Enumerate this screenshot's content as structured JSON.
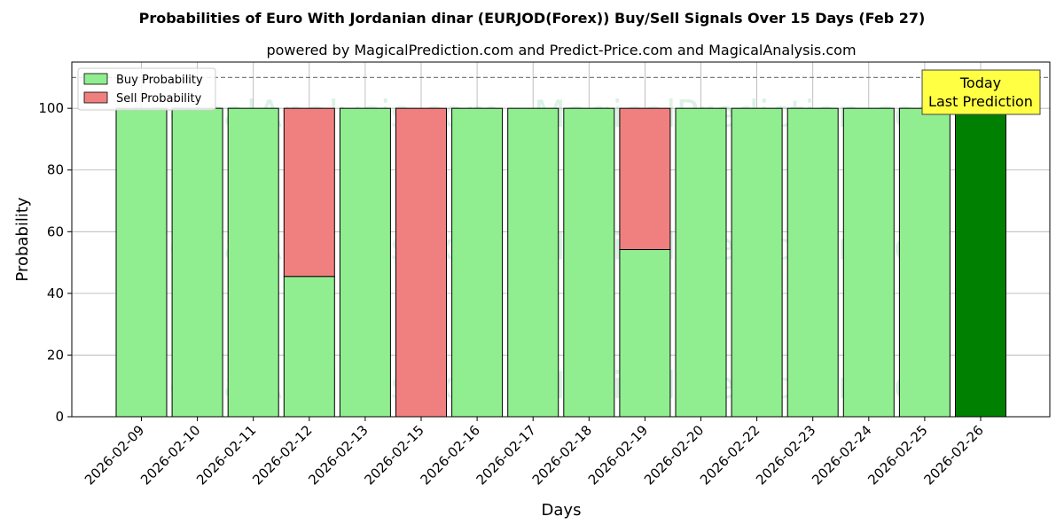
{
  "chart_data": {
    "type": "bar",
    "stacked": true,
    "title": "Probabilities of Euro With Jordanian dinar (EURJOD(Forex)) Buy/Sell Signals Over 15 Days (Feb 27)",
    "subtitle": "powered by MagicalPrediction.com and Predict-Price.com and MagicalAnalysis.com",
    "xlabel": "Days",
    "ylabel": "Probability",
    "ylim": [
      0,
      115
    ],
    "yticks": [
      0,
      20,
      40,
      60,
      80,
      100
    ],
    "grid": true,
    "legend_position": "top-left",
    "reference_line": 110,
    "categories": [
      "2026-02-09",
      "2026-02-10",
      "2026-02-11",
      "2026-02-12",
      "2026-02-13",
      "2026-02-15",
      "2026-02-16",
      "2026-02-17",
      "2026-02-18",
      "2026-02-19",
      "2026-02-20",
      "2026-02-22",
      "2026-02-23",
      "2026-02-24",
      "2026-02-25",
      "2026-02-26"
    ],
    "series": [
      {
        "name": "Buy Probability",
        "color": "#90ee90",
        "values": [
          100,
          100,
          100,
          45.5,
          100,
          0,
          100,
          100,
          100,
          54.2,
          100,
          100,
          100,
          100,
          100,
          100
        ]
      },
      {
        "name": "Sell Probability",
        "color": "#f08080",
        "values": [
          0,
          0,
          0,
          54.5,
          0,
          100,
          0,
          0,
          0,
          45.8,
          0,
          0,
          0,
          0,
          0,
          0
        ]
      }
    ],
    "highlight": {
      "index": 15,
      "color": "#008000"
    },
    "annotation": {
      "lines": [
        "Today",
        "Last Prediction"
      ],
      "bg": "#ffff44"
    },
    "watermarks": [
      "MagicalAnalysis.com",
      "MagicalPrediction.com"
    ]
  }
}
